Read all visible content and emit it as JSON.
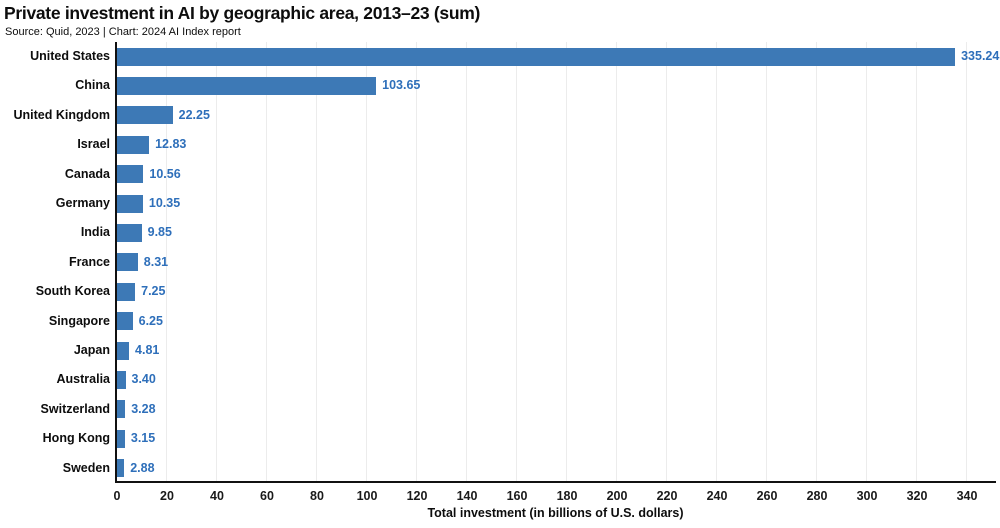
{
  "header": {
    "title": "Private investment in AI by geographic area, 2013–23 (sum)",
    "subtitle": "Source: Quid, 2023 | Chart: 2024 AI Index report"
  },
  "chart_data": {
    "type": "bar",
    "orientation": "horizontal",
    "title": "Private investment in AI by geographic area, 2013–23 (sum)",
    "source_note": "Source: Quid, 2023 | Chart: 2024 AI Index report",
    "categories": [
      "United States",
      "China",
      "United Kingdom",
      "Israel",
      "Canada",
      "Germany",
      "India",
      "France",
      "South Korea",
      "Singapore",
      "Japan",
      "Australia",
      "Switzerland",
      "Hong Kong",
      "Sweden"
    ],
    "values": [
      335.24,
      103.65,
      22.25,
      12.83,
      10.56,
      10.35,
      9.85,
      8.31,
      7.25,
      6.25,
      4.81,
      3.4,
      3.28,
      3.15,
      2.88
    ],
    "value_labels": [
      "335.24",
      "103.65",
      "22.25",
      "12.83",
      "10.56",
      "10.35",
      "9.85",
      "8.31",
      "7.25",
      "6.25",
      "4.81",
      "3.40",
      "3.28",
      "3.15",
      "2.88"
    ],
    "xlabel": "Total investment (in billions of U.S. dollars)",
    "ylabel": "",
    "xlim": [
      0,
      352
    ],
    "xticks": [
      0,
      20,
      40,
      60,
      80,
      100,
      120,
      140,
      160,
      180,
      200,
      220,
      240,
      260,
      280,
      300,
      320,
      340
    ],
    "grid": true,
    "legend": "none",
    "bar_color": "#3d79b6",
    "value_label_color": "#2e6fba",
    "axis_color": "#111111",
    "gridline_color": "#ececec"
  }
}
